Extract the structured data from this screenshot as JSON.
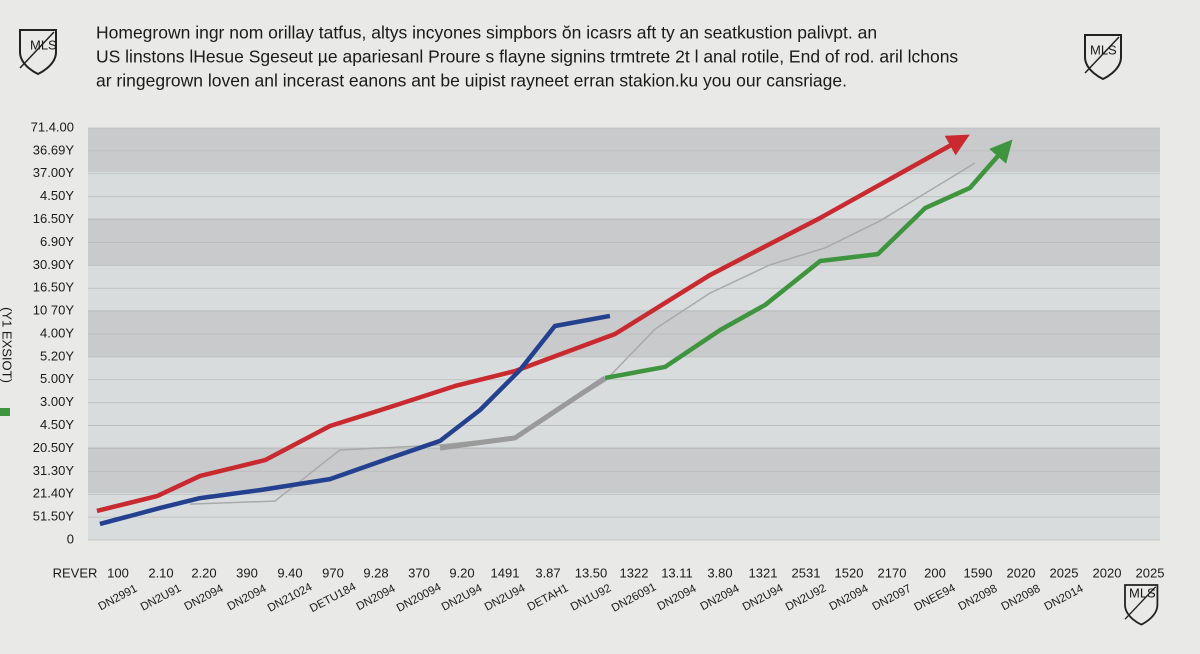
{
  "chart_data": {
    "type": "line",
    "title_lines": [
      "Homegrown ingr nom orillay tatfus, altys incyones simpbors ŏn icasrs aft ty an seatkustion palivpt. an",
      "US linstons lHesue Sgeseut µe apariesanl Proure s flayne signins trmtrete 2t l anal rotile, End of rod. aril lchons",
      "ar ringegrown loven anl incerast eanons ant be uipist rayneet erran stakion.ku you our cansriage."
    ],
    "logos": [
      "MLS",
      "MLS",
      "MLS"
    ],
    "y_label": "(Y1 EXSIOT)",
    "categories": [
      "REVER",
      "100",
      "2.10",
      "2.20",
      "390",
      "9.40",
      "970",
      "9.28",
      "370",
      "9.20",
      "1491",
      "3.87",
      "13.50",
      "1322",
      "13.11",
      "3.80",
      "1321",
      "2531",
      "1520",
      "2170",
      "200",
      "1590",
      "2020",
      "2025",
      "2020",
      "2025"
    ],
    "sublabels": [
      null,
      "DN2991",
      "DN2U91",
      "DN2094",
      "DN2094",
      "DN21024",
      "DETU184",
      "DN2094",
      "DN20094",
      "DN2U94",
      "DN2U94",
      "DETAH1",
      "DN1U92",
      "DN26091",
      "DN2094",
      "DN2094",
      "DN2U94",
      "DN2U92",
      "DN2094",
      "DN2097",
      "DNEE94",
      "DN2098",
      "DN2098",
      "DN2014",
      null,
      null
    ],
    "xlim": [
      0,
      25
    ],
    "ylim": [
      0,
      18
    ],
    "yticks": [
      {
        "value": 0,
        "label": "0"
      },
      {
        "value": 1,
        "label": "51.50Y"
      },
      {
        "value": 2,
        "label": "21.40Y"
      },
      {
        "value": 3,
        "label": "31.30Y"
      },
      {
        "value": 4,
        "label": "20.50Y"
      },
      {
        "value": 5,
        "label": "4.50Y"
      },
      {
        "value": 6,
        "label": "3.00Y"
      },
      {
        "value": 7,
        "label": "5.00Y"
      },
      {
        "value": 8,
        "label": "5.20Y"
      },
      {
        "value": 9,
        "label": "4.00Y"
      },
      {
        "value": 10,
        "label": "10 70Y"
      },
      {
        "value": 11,
        "label": "16.50Y"
      },
      {
        "value": 12,
        "label": "30.90Y"
      },
      {
        "value": 13,
        "label": "6.90Y"
      },
      {
        "value": 14,
        "label": "16.50Y"
      },
      {
        "value": 15,
        "label": "4.50Y"
      },
      {
        "value": 16,
        "label": "37.00Y"
      },
      {
        "value": 17,
        "label": "36.69Y"
      },
      {
        "value": 18,
        "label": "71.4.00"
      }
    ],
    "grid": true,
    "series": [
      {
        "color": "#a9a9a9",
        "width": 1.5,
        "arrow": false,
        "x": [
          2.67,
          4.65,
          6.16,
          8.49,
          10.23,
          12.33,
          13.49,
          14.77,
          16.16,
          17.44,
          18.72,
          20.93
        ],
        "values": [
          1.57,
          1.7,
          3.93,
          4.15,
          4.5,
          6.95,
          9.22,
          10.79,
          12.02,
          12.76,
          13.94,
          16.47
        ]
      },
      {
        "color": "#9a9a9a",
        "width": 5,
        "arrow": false,
        "x": [
          8.49,
          10.23,
          12.33
        ],
        "values": [
          4.02,
          4.46,
          7.08
        ]
      },
      {
        "color": "#c82a2f",
        "width": 4.5,
        "arrow": true,
        "x": [
          0.51,
          1.91,
          2.91,
          4.42,
          5.93,
          7.33,
          8.84,
          10.23,
          12.56,
          14.77,
          17.33,
          20.58
        ],
        "values": [
          1.27,
          1.92,
          2.8,
          3.49,
          4.98,
          5.81,
          6.73,
          7.38,
          9.0,
          11.58,
          14.07,
          17.47
        ]
      },
      {
        "color": "#24418f",
        "width": 4.5,
        "arrow": false,
        "x": [
          0.58,
          1.98,
          2.91,
          4.3,
          5.93,
          7.33,
          8.49,
          9.42,
          10.35,
          11.16,
          12.44
        ],
        "values": [
          0.7,
          1.4,
          1.83,
          2.18,
          2.66,
          3.58,
          4.33,
          5.68,
          7.43,
          9.35,
          9.79
        ]
      },
      {
        "color": "#3f943f",
        "width": 4.5,
        "arrow": true,
        "x": [
          12.33,
          13.72,
          15.0,
          16.05,
          17.33,
          18.67,
          19.77,
          20.81,
          21.63
        ],
        "values": [
          7.08,
          7.56,
          9.17,
          10.27,
          12.19,
          12.49,
          14.5,
          15.38,
          17.13
        ]
      }
    ]
  }
}
